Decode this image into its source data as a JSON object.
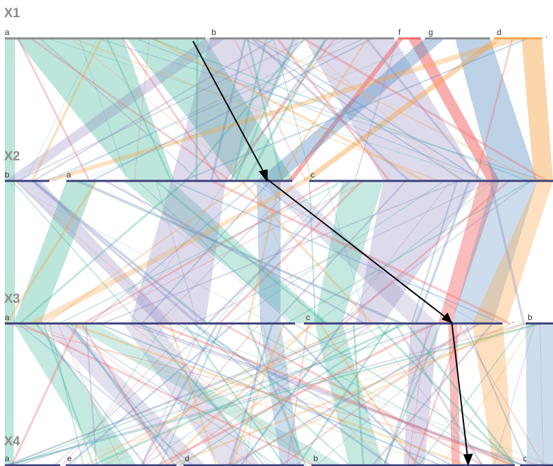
{
  "colors": {
    "teal": "#3fb59b",
    "purple": "#8e86bd",
    "blue": "#5b8ec4",
    "red": "#f26b6b",
    "orange": "#f6a54a",
    "axis_gray": "#8c8c8c",
    "axis_navy": "#3b3f7a",
    "arrow": "#000000"
  },
  "axes": [
    {
      "name": "X1",
      "segments": [
        {
          "label": "a",
          "color": "axis_gray"
        },
        {
          "label": "b",
          "color": "axis_gray"
        },
        {
          "label": "f",
          "color": "red"
        },
        {
          "label": "g",
          "color": "axis_gray"
        },
        {
          "label": "d",
          "color": "orange"
        },
        {
          "label": ".",
          "color": "axis_gray"
        }
      ]
    },
    {
      "name": "X2",
      "segments": [
        {
          "label": "b",
          "color": "axis_navy"
        },
        {
          "label": "a",
          "color": "axis_navy"
        },
        {
          "label": "c",
          "color": "axis_navy"
        }
      ]
    },
    {
      "name": "X3",
      "segments": [
        {
          "label": "a",
          "color": "axis_navy"
        },
        {
          "label": "c",
          "color": "axis_navy"
        },
        {
          "label": ".",
          "color": "axis_navy"
        },
        {
          "label": "b",
          "color": "axis_navy"
        }
      ]
    },
    {
      "name": "X4",
      "segments": [
        {
          "label": "a",
          "color": "axis_navy"
        },
        {
          "label": "e",
          "color": "axis_navy"
        },
        {
          "label": "d",
          "color": "axis_navy"
        },
        {
          "label": "b",
          "color": "axis_navy"
        },
        {
          "label": "c",
          "color": "axis_navy"
        }
      ]
    }
  ]
}
